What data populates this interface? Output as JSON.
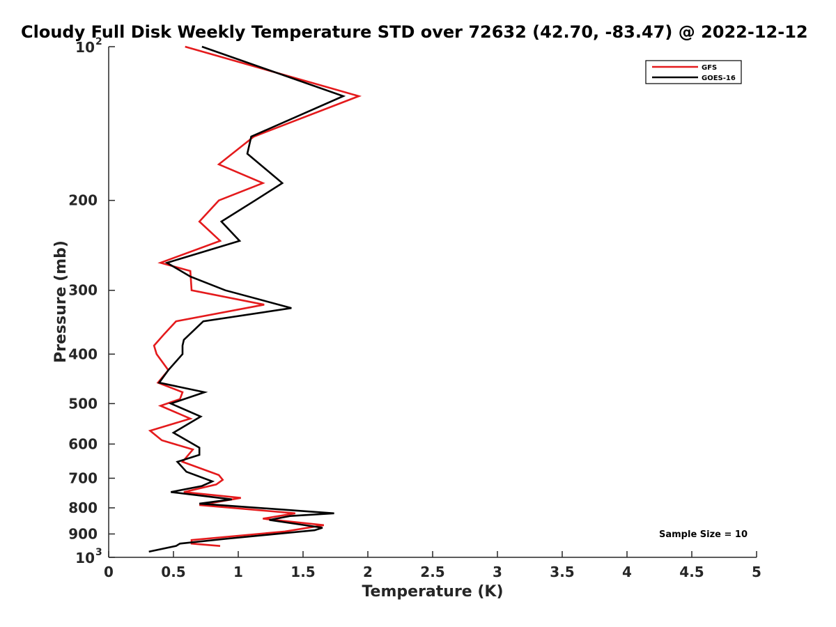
{
  "chart_data": {
    "type": "line",
    "title": "Cloudy Full Disk Weekly Temperature STD over 72632 (42.70, -83.47) @ 2022-12-12",
    "xlabel": "Temperature (K)",
    "ylabel": "Pressure (mb)",
    "xlim": [
      0,
      5
    ],
    "ylim": [
      100,
      1000
    ],
    "yscale": "log",
    "y_reversed": true,
    "grid": false,
    "legend_position": "top-right",
    "x_ticks": [
      {
        "value": 0,
        "label": "0"
      },
      {
        "value": 0.5,
        "label": "0.5"
      },
      {
        "value": 1,
        "label": "1"
      },
      {
        "value": 1.5,
        "label": "1.5"
      },
      {
        "value": 2,
        "label": "2"
      },
      {
        "value": 2.5,
        "label": "2.5"
      },
      {
        "value": 3,
        "label": "3"
      },
      {
        "value": 3.5,
        "label": "3.5"
      },
      {
        "value": 4,
        "label": "4"
      },
      {
        "value": 4.5,
        "label": "4.5"
      },
      {
        "value": 5,
        "label": "5"
      }
    ],
    "y_ticks": [
      {
        "value": 100,
        "base": "10",
        "exp": "2"
      },
      {
        "value": 200,
        "label": "200"
      },
      {
        "value": 300,
        "label": "300"
      },
      {
        "value": 400,
        "label": "400"
      },
      {
        "value": 500,
        "label": "500"
      },
      {
        "value": 600,
        "label": "600"
      },
      {
        "value": 700,
        "label": "700"
      },
      {
        "value": 800,
        "label": "800"
      },
      {
        "value": 900,
        "label": "900"
      },
      {
        "value": 1000,
        "base": "10",
        "exp": "3"
      }
    ],
    "series": [
      {
        "name": "GFS",
        "color": "#e41a1c",
        "points": [
          [
            0.59,
            100
          ],
          [
            1.93,
            125
          ],
          [
            1.12,
            150
          ],
          [
            0.85,
            170
          ],
          [
            1.19,
            185
          ],
          [
            0.85,
            200
          ],
          [
            0.7,
            220
          ],
          [
            0.86,
            240
          ],
          [
            0.4,
            265
          ],
          [
            0.63,
            275
          ],
          [
            0.64,
            300
          ],
          [
            1.2,
            320
          ],
          [
            0.52,
            345
          ],
          [
            0.43,
            365
          ],
          [
            0.35,
            385
          ],
          [
            0.37,
            400
          ],
          [
            0.46,
            430
          ],
          [
            0.38,
            455
          ],
          [
            0.57,
            475
          ],
          [
            0.55,
            490
          ],
          [
            0.4,
            505
          ],
          [
            0.63,
            535
          ],
          [
            0.32,
            565
          ],
          [
            0.41,
            590
          ],
          [
            0.65,
            615
          ],
          [
            0.57,
            650
          ],
          [
            0.85,
            690
          ],
          [
            0.88,
            705
          ],
          [
            0.83,
            720
          ],
          [
            0.58,
            745
          ],
          [
            1.02,
            765
          ],
          [
            0.7,
            790
          ],
          [
            1.44,
            820
          ],
          [
            1.19,
            840
          ],
          [
            1.66,
            865
          ],
          [
            1.36,
            890
          ],
          [
            0.64,
            925
          ],
          [
            0.64,
            940
          ],
          [
            0.86,
            950
          ]
        ]
      },
      {
        "name": "GOES-16",
        "color": "#000000",
        "points": [
          [
            0.72,
            100
          ],
          [
            1.81,
            125
          ],
          [
            1.1,
            150
          ],
          [
            1.07,
            162
          ],
          [
            1.34,
            185
          ],
          [
            1.13,
            200
          ],
          [
            0.87,
            220
          ],
          [
            1.01,
            240
          ],
          [
            0.45,
            265
          ],
          [
            0.63,
            282
          ],
          [
            0.9,
            300
          ],
          [
            1.41,
            325
          ],
          [
            0.73,
            345
          ],
          [
            0.58,
            375
          ],
          [
            0.57,
            385
          ],
          [
            0.57,
            400
          ],
          [
            0.46,
            430
          ],
          [
            0.39,
            455
          ],
          [
            0.74,
            475
          ],
          [
            0.48,
            500
          ],
          [
            0.71,
            530
          ],
          [
            0.5,
            570
          ],
          [
            0.7,
            610
          ],
          [
            0.7,
            630
          ],
          [
            0.53,
            650
          ],
          [
            0.6,
            680
          ],
          [
            0.8,
            710
          ],
          [
            0.72,
            725
          ],
          [
            0.48,
            745
          ],
          [
            0.95,
            770
          ],
          [
            0.7,
            785
          ],
          [
            1.74,
            820
          ],
          [
            1.4,
            830
          ],
          [
            1.24,
            845
          ],
          [
            1.65,
            875
          ],
          [
            1.59,
            885
          ],
          [
            0.9,
            920
          ],
          [
            0.55,
            940
          ],
          [
            0.52,
            950
          ],
          [
            0.31,
            975
          ]
        ]
      }
    ],
    "annotation": "Sample Size = 10"
  }
}
